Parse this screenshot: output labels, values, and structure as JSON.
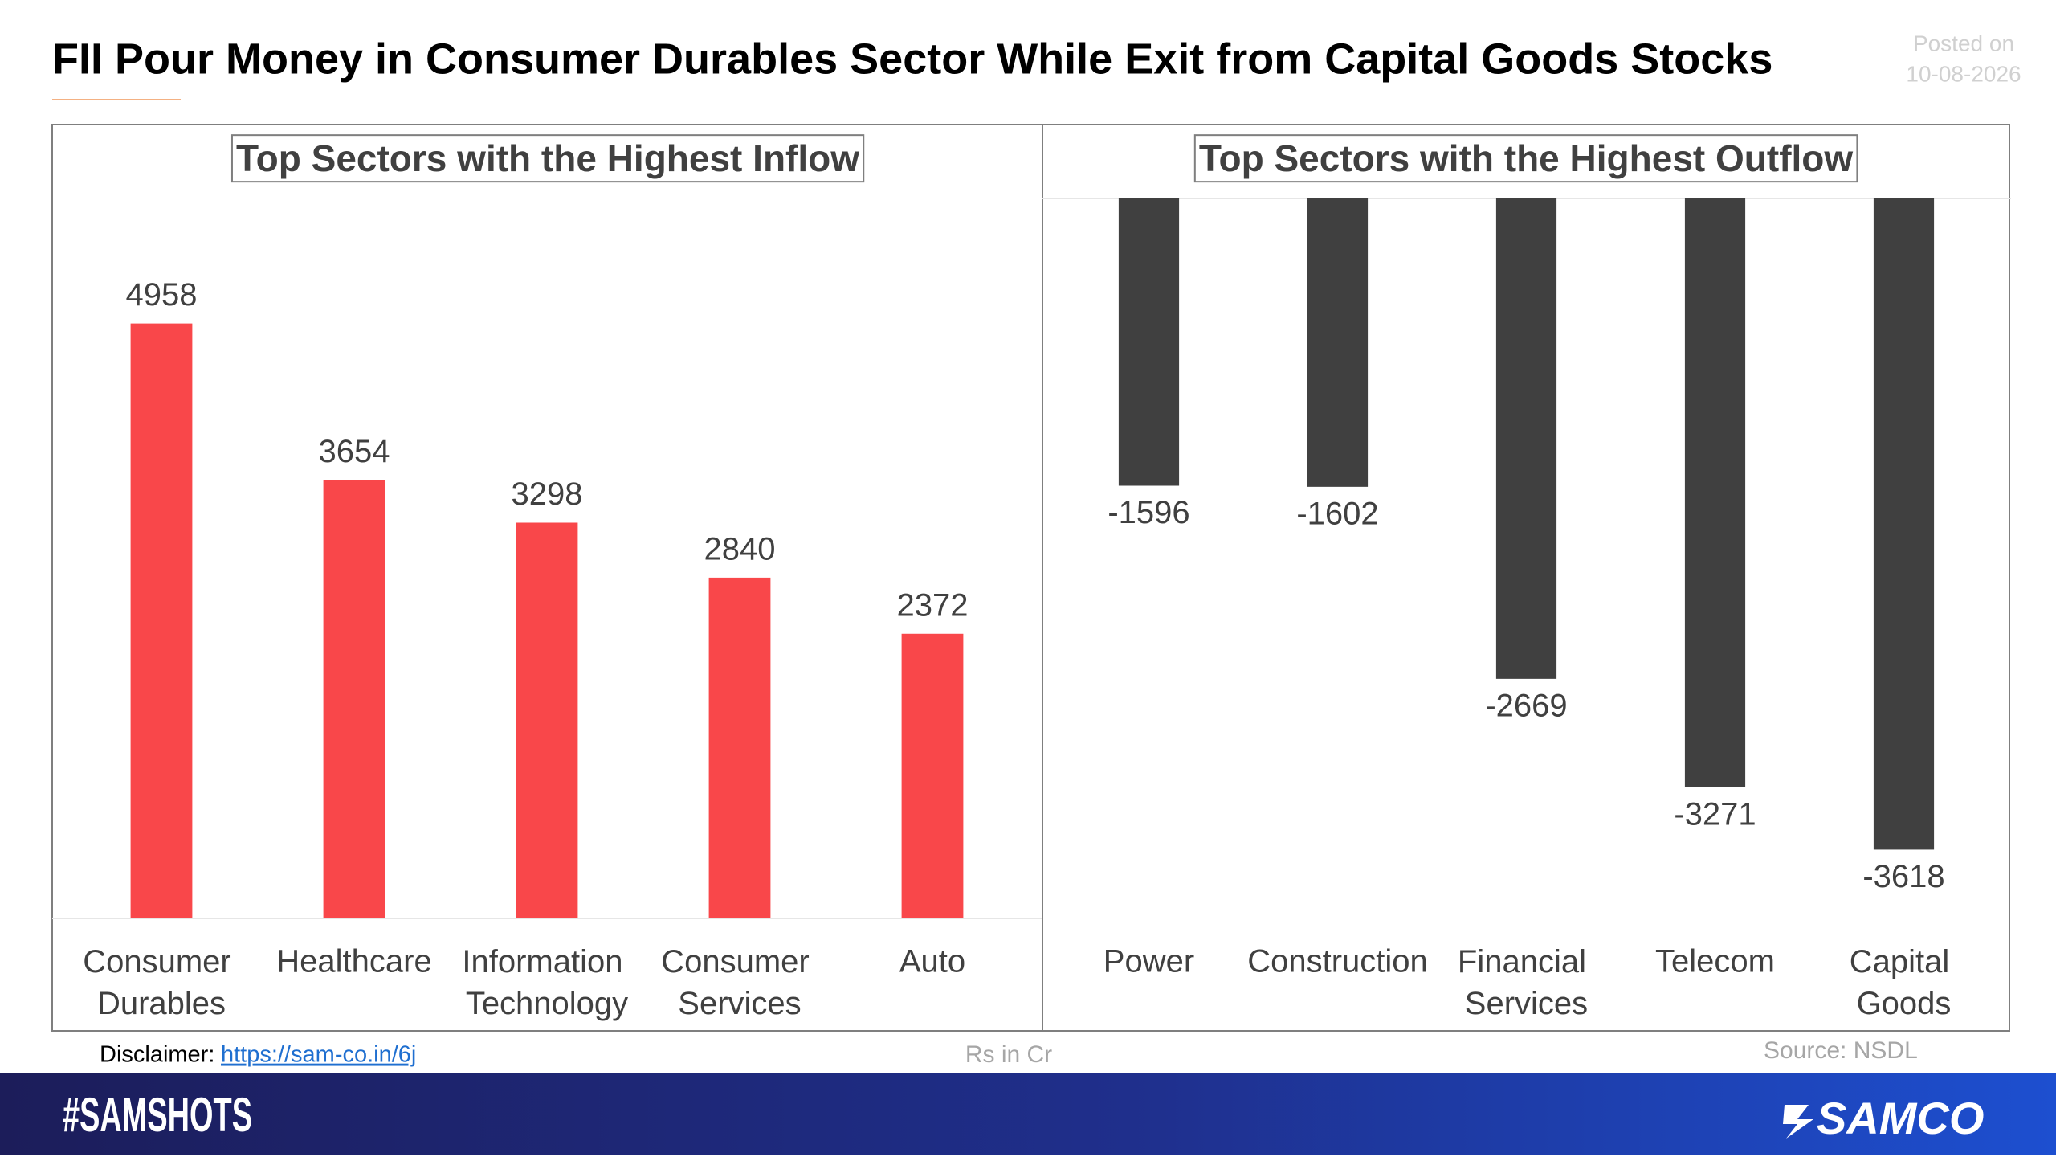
{
  "header": {
    "title": "FII Pour Money in Consumer Durables Sector While Exit from Capital Goods Stocks",
    "posted_label": "Posted on",
    "posted_date": "10-08-2026"
  },
  "chart_data": [
    {
      "type": "bar",
      "title": "Top Sectors with the Highest Inflow",
      "categories": [
        "Consumer Durables",
        "Healthcare",
        "Information Technology",
        "Consumer Services",
        "Auto"
      ],
      "values": [
        4958,
        3654,
        3298,
        2840,
        2372
      ],
      "color": "#f9474a",
      "ylim": [
        0,
        6000
      ]
    },
    {
      "type": "bar",
      "title": "Top Sectors with the Highest Outflow",
      "categories": [
        "Power",
        "Construction",
        "Financial Services",
        "Telecom",
        "Capital Goods"
      ],
      "values": [
        -1596,
        -1602,
        -2669,
        -3271,
        -3618
      ],
      "color": "#404040",
      "ylim": [
        -4000,
        0
      ]
    }
  ],
  "notes": {
    "disclaimer_label": "Disclaimer:",
    "disclaimer_link": "https://sam-co.in/6j",
    "unit": "Rs in Cr",
    "source": "Source: NSDL"
  },
  "banner": {
    "hashtag": "#SAMSHOTS",
    "brand": "SAMCO"
  }
}
